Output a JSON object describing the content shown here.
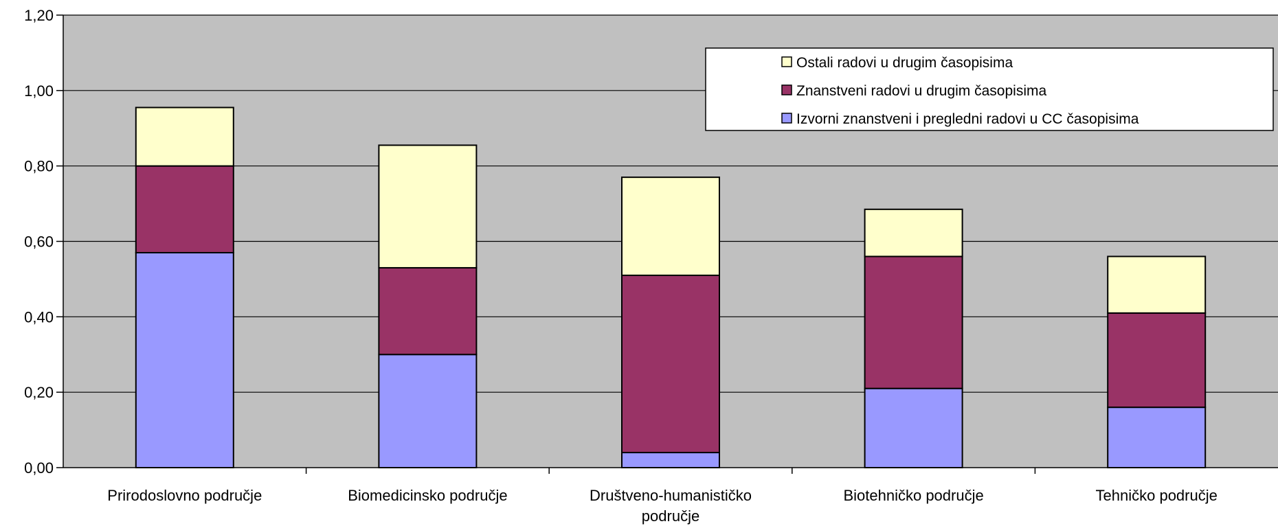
{
  "chart_data": {
    "type": "bar",
    "stacked": true,
    "categories": [
      "Prirodoslovno područje",
      "Biomedicinsko područje",
      "Društveno-humanističko područje",
      "Biotehničko područje",
      "Tehničko područje"
    ],
    "category_lines": [
      [
        "Prirodoslovno područje"
      ],
      [
        "Biomedicinsko područje"
      ],
      [
        "Društveno-humanističko",
        "područje"
      ],
      [
        "Biotehničko područje"
      ],
      [
        "Tehničko područje"
      ]
    ],
    "series": [
      {
        "name": "Izvorni znanstveni i pregledni radovi u CC časopisima",
        "color": "#9999ff",
        "values": [
          0.57,
          0.3,
          0.04,
          0.21,
          0.16
        ]
      },
      {
        "name": "Znanstveni radovi u drugim časopisima",
        "color": "#993366",
        "values": [
          0.23,
          0.23,
          0.47,
          0.35,
          0.25
        ]
      },
      {
        "name": "Ostali radovi u drugim časopisima",
        "color": "#ffffcc",
        "values": [
          0.155,
          0.325,
          0.26,
          0.125,
          0.15
        ]
      }
    ],
    "legend_order": [
      2,
      1,
      0
    ],
    "yticks": [
      "0,00",
      "0,20",
      "0,40",
      "0,60",
      "0,80",
      "1,00",
      "1,20"
    ],
    "ylim": [
      0,
      1.2
    ],
    "ystep": 0.2,
    "grid": true,
    "plot_background": "#c0c0c0",
    "legend_position": "top-right",
    "title": "",
    "xlabel": "",
    "ylabel": ""
  }
}
